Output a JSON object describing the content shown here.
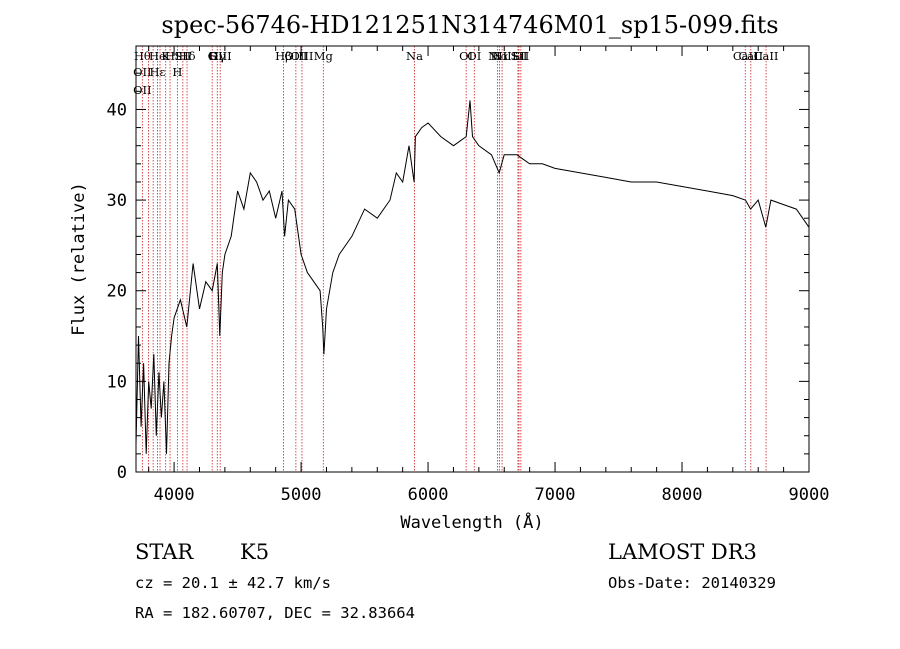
{
  "chart_data": {
    "type": "line",
    "title": "spec-56746-HD121251N314746M01_sp15-099.fits",
    "xlabel": "Wavelength (Å)",
    "ylabel": "Flux (relative)",
    "xlim": [
      3700,
      9000
    ],
    "ylim": [
      0,
      47
    ],
    "x_ticks": [
      4000,
      5000,
      6000,
      7000,
      8000,
      9000
    ],
    "y_ticks": [
      0,
      10,
      20,
      30,
      40
    ],
    "grid": false,
    "series": [
      {
        "x": [
          3700,
          3720,
          3740,
          3760,
          3780,
          3800,
          3820,
          3840,
          3860,
          3880,
          3900,
          3920,
          3940,
          3960,
          3980,
          4000,
          4050,
          4100,
          4150,
          4200,
          4250,
          4300,
          4340,
          4360,
          4380,
          4400,
          4450,
          4500,
          4550,
          4600,
          4650,
          4700,
          4750,
          4800,
          4850,
          4870,
          4900,
          4950,
          5000,
          5050,
          5100,
          5150,
          5170,
          5180,
          5200,
          5250,
          5300,
          5400,
          5500,
          5600,
          5700,
          5750,
          5800,
          5850,
          5890,
          5900,
          5950,
          6000,
          6100,
          6200,
          6300,
          6330,
          6350,
          6400,
          6500,
          6560,
          6600,
          6700,
          6800,
          6900,
          7000,
          7200,
          7400,
          7600,
          7800,
          8000,
          8200,
          8400,
          8500,
          8540,
          8600,
          8660,
          8700,
          8800,
          8900,
          8950,
          9000
        ],
        "y": [
          3,
          15,
          5,
          12,
          2,
          10,
          7,
          13,
          4,
          11,
          6,
          10,
          2,
          12,
          15,
          17,
          19,
          16,
          23,
          18,
          21,
          20,
          23,
          15,
          22,
          24,
          26,
          31,
          29,
          33,
          32,
          30,
          31,
          28,
          31,
          26,
          30,
          29,
          24,
          22,
          21,
          20,
          16,
          13,
          18,
          22,
          24,
          26,
          29,
          28,
          30,
          33,
          32,
          36,
          32,
          37,
          38,
          38.5,
          37,
          36,
          37,
          41,
          37,
          36,
          35,
          33,
          35,
          35,
          34,
          34,
          33.5,
          33,
          32.5,
          32,
          32,
          31.5,
          31,
          30.5,
          30,
          29,
          30,
          27,
          30,
          29.5,
          29,
          28,
          27
        ]
      }
    ],
    "line_markers": [
      {
        "wavelength": 3750,
        "labels": [
          "Hθ",
          "OII",
          "OII"
        ]
      },
      {
        "wavelength": 3798,
        "labels": []
      },
      {
        "wavelength": 3835,
        "labels": []
      },
      {
        "wavelength": 3869,
        "labels": [
          "He",
          "Hε"
        ]
      },
      {
        "wavelength": 3889,
        "labels": []
      },
      {
        "wavelength": 3934,
        "labels": [
          "K"
        ]
      },
      {
        "wavelength": 3968,
        "labels": [
          "H"
        ]
      },
      {
        "wavelength": 4026,
        "labels": [
          "I",
          "H"
        ]
      },
      {
        "wavelength": 4069,
        "labels": [
          "SII"
        ]
      },
      {
        "wavelength": 4102,
        "labels": [
          "Hδ"
        ]
      },
      {
        "wavelength": 4300,
        "labels": [
          "G"
        ]
      },
      {
        "wavelength": 4340,
        "labels": [
          "Hγ"
        ]
      },
      {
        "wavelength": 4363,
        "labels": [
          "OIII"
        ]
      },
      {
        "wavelength": 4861,
        "labels": [
          "Hβ"
        ]
      },
      {
        "wavelength": 4959,
        "labels": [
          "OIII"
        ]
      },
      {
        "wavelength": 5007,
        "labels": [
          "OIII"
        ]
      },
      {
        "wavelength": 5175,
        "labels": [
          "Mg"
        ]
      },
      {
        "wavelength": 5893,
        "labels": [
          "Na"
        ]
      },
      {
        "wavelength": 6300,
        "labels": [
          "OI"
        ]
      },
      {
        "wavelength": 6364,
        "labels": [
          "OI"
        ]
      },
      {
        "wavelength": 6548,
        "labels": [
          "NII"
        ]
      },
      {
        "wavelength": 6563,
        "labels": [
          "Hα"
        ]
      },
      {
        "wavelength": 6583,
        "labels": [
          "NII"
        ]
      },
      {
        "wavelength": 6708,
        "labels": [
          "Li"
        ]
      },
      {
        "wavelength": 6716,
        "labels": [
          "SII"
        ]
      },
      {
        "wavelength": 6731,
        "labels": [
          "SII"
        ]
      },
      {
        "wavelength": 8498,
        "labels": [
          "CaII"
        ]
      },
      {
        "wavelength": 8542,
        "labels": [
          "CaII"
        ]
      },
      {
        "wavelength": 8662,
        "labels": [
          "CaII"
        ]
      }
    ]
  },
  "info": {
    "class_label": "STAR",
    "subclass": "K5",
    "survey": "LAMOST DR3",
    "cz": "cz = 20.1 ± 42.7 km/s",
    "obs_date": "Obs-Date: 20140329",
    "coords": "RA = 182.60707, DEC =  32.83664"
  },
  "colors": {
    "spectrum": "#000000",
    "marker_lines": "#cc2222",
    "axes": "#000000"
  }
}
